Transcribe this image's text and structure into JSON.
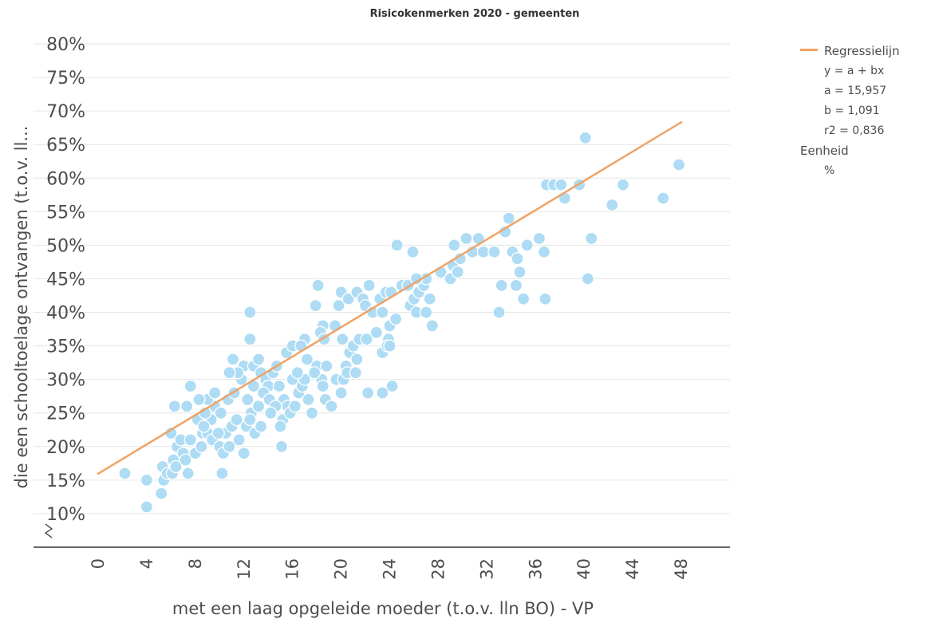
{
  "legend": {
    "series_label": "Regressielijn",
    "formula": "y = a + bx",
    "a": "a = 15,957",
    "b": "b = 1,091",
    "r2": "r2 = 0,836",
    "unit_label": "Eenheid",
    "unit_value": "%"
  },
  "chart_data": {
    "type": "scatter",
    "title": "Risicokenmerken 2020 - gemeenten",
    "xlabel": "met een laag opgeleide moeder (t.o.v. lln BO) - VP",
    "ylabel": "die een schooltoelage ontvangen (t.o.v. ll...",
    "x_ticks": [
      "0",
      "4",
      "8",
      "12",
      "16",
      "20",
      "24",
      "28",
      "32",
      "36",
      "40",
      "44",
      "48"
    ],
    "y_ticks": [
      "10%",
      "15%",
      "20%",
      "25%",
      "30%",
      "35%",
      "40%",
      "45%",
      "50%",
      "55%",
      "60%",
      "65%",
      "70%",
      "75%",
      "80%"
    ],
    "xlim": [
      0,
      52
    ],
    "ylim": [
      5,
      80
    ],
    "axis_break": true,
    "grid": "horizontal",
    "colors": {
      "points": "#aedcf4",
      "point_edge": "#ffffff",
      "regression": "#f0a366",
      "grid": "#e6e6e6",
      "axis": "#333333"
    },
    "regression": {
      "a": 15.957,
      "b": 1.091,
      "x_range": [
        0,
        48
      ]
    },
    "points": [
      [
        2.2,
        16
      ],
      [
        4,
        15
      ],
      [
        4,
        11
      ],
      [
        5.2,
        13
      ],
      [
        5.4,
        15
      ],
      [
        5.3,
        17
      ],
      [
        5.7,
        16
      ],
      [
        6.1,
        16
      ],
      [
        6.2,
        18
      ],
      [
        6.4,
        17
      ],
      [
        6,
        22
      ],
      [
        6.5,
        20
      ],
      [
        7,
        19
      ],
      [
        7.2,
        18
      ],
      [
        7.4,
        16
      ],
      [
        6.8,
        21
      ],
      [
        6.3,
        26
      ],
      [
        7.3,
        26
      ],
      [
        7.6,
        29
      ],
      [
        8,
        19
      ],
      [
        8.5,
        20
      ],
      [
        8.6,
        22
      ],
      [
        9,
        22
      ],
      [
        9.3,
        24
      ],
      [
        9.6,
        26
      ],
      [
        9,
        27
      ],
      [
        9.4,
        21
      ],
      [
        10,
        20
      ],
      [
        10.3,
        19
      ],
      [
        10.8,
        20
      ],
      [
        10.5,
        22
      ],
      [
        11,
        23
      ],
      [
        11.4,
        24
      ],
      [
        11.6,
        21
      ],
      [
        12,
        19
      ],
      [
        12.2,
        23
      ],
      [
        12.6,
        25
      ],
      [
        12.3,
        27
      ],
      [
        12.8,
        29
      ],
      [
        12.5,
        24
      ],
      [
        8.2,
        24
      ],
      [
        8.8,
        25
      ],
      [
        10.1,
        25
      ],
      [
        10.7,
        27
      ],
      [
        11.2,
        28
      ],
      [
        11.8,
        30
      ],
      [
        12,
        32
      ],
      [
        11.5,
        31
      ],
      [
        10.8,
        31
      ],
      [
        11.1,
        33
      ],
      [
        12.8,
        32
      ],
      [
        13.2,
        33
      ],
      [
        13.4,
        31
      ],
      [
        13.8,
        30
      ],
      [
        14,
        29
      ],
      [
        14.4,
        31
      ],
      [
        14.7,
        32
      ],
      [
        15,
        29
      ],
      [
        15.3,
        27
      ],
      [
        15.6,
        26
      ],
      [
        15.2,
        24
      ],
      [
        15.8,
        25
      ],
      [
        16.2,
        26
      ],
      [
        16.5,
        28
      ],
      [
        16.8,
        29
      ],
      [
        17,
        30
      ],
      [
        17.3,
        27
      ],
      [
        17.6,
        25
      ],
      [
        13.2,
        26
      ],
      [
        13.6,
        28
      ],
      [
        14.1,
        27
      ],
      [
        14.6,
        26
      ],
      [
        15,
        23
      ],
      [
        15.1,
        20
      ],
      [
        14.2,
        25
      ],
      [
        12.9,
        22
      ],
      [
        13.4,
        23
      ],
      [
        12.5,
        36
      ],
      [
        12.5,
        40
      ],
      [
        15.5,
        34
      ],
      [
        16,
        35
      ],
      [
        17.2,
        33
      ],
      [
        17,
        36
      ],
      [
        16.7,
        35
      ],
      [
        18,
        32
      ],
      [
        18.4,
        30
      ],
      [
        18.8,
        32
      ],
      [
        18.5,
        29
      ],
      [
        18.7,
        27
      ],
      [
        19.2,
        26
      ],
      [
        19.6,
        30
      ],
      [
        20,
        28
      ],
      [
        20.2,
        30
      ],
      [
        20.4,
        32
      ],
      [
        20.7,
        34
      ],
      [
        21,
        35
      ],
      [
        21.3,
        33
      ],
      [
        21.5,
        36
      ],
      [
        22.1,
        36
      ],
      [
        20.1,
        36
      ],
      [
        19.8,
        41
      ],
      [
        18.5,
        38
      ],
      [
        18.3,
        37
      ],
      [
        18.6,
        36
      ],
      [
        17.9,
        41
      ],
      [
        18.1,
        44
      ],
      [
        20,
        43
      ],
      [
        20.6,
        42
      ],
      [
        21.3,
        43
      ],
      [
        21.8,
        42
      ],
      [
        22.3,
        44
      ],
      [
        22,
        41
      ],
      [
        22.6,
        40
      ],
      [
        22.9,
        37
      ],
      [
        23.4,
        40
      ],
      [
        23.9,
        36
      ],
      [
        23.4,
        34
      ],
      [
        23.8,
        35
      ],
      [
        24,
        35
      ],
      [
        24.2,
        29
      ],
      [
        22.2,
        28
      ],
      [
        23.4,
        28
      ],
      [
        23.2,
        42
      ],
      [
        23.7,
        43
      ],
      [
        24.1,
        43
      ],
      [
        24,
        38
      ],
      [
        24.5,
        39
      ],
      [
        25,
        44
      ],
      [
        24.6,
        50
      ],
      [
        25.7,
        41
      ],
      [
        26,
        42
      ],
      [
        26.2,
        40
      ],
      [
        26.4,
        43
      ],
      [
        26.8,
        44
      ],
      [
        27,
        40
      ],
      [
        27.5,
        38
      ],
      [
        27.3,
        42
      ],
      [
        27,
        45
      ],
      [
        25.9,
        49
      ],
      [
        28.2,
        46
      ],
      [
        29,
        45
      ],
      [
        29.2,
        47
      ],
      [
        29.3,
        50
      ],
      [
        29.6,
        46
      ],
      [
        29.8,
        48
      ],
      [
        30.3,
        51
      ],
      [
        30.8,
        49
      ],
      [
        31.3,
        51
      ],
      [
        31.7,
        49
      ],
      [
        32.6,
        49
      ],
      [
        33.2,
        44
      ],
      [
        33.5,
        52
      ],
      [
        33.8,
        54
      ],
      [
        34.1,
        49
      ],
      [
        34.5,
        48
      ],
      [
        34.7,
        46
      ],
      [
        35.3,
        50
      ],
      [
        35,
        42
      ],
      [
        36.3,
        51
      ],
      [
        36.7,
        49
      ],
      [
        36.9,
        59
      ],
      [
        37.5,
        59
      ],
      [
        38.1,
        59
      ],
      [
        38.4,
        57
      ],
      [
        39.6,
        59
      ],
      [
        40.1,
        66
      ],
      [
        40.6,
        51
      ],
      [
        40.3,
        45
      ],
      [
        42.3,
        56
      ],
      [
        43.2,
        59
      ],
      [
        46.5,
        57
      ],
      [
        47.8,
        62
      ],
      [
        36.8,
        42
      ],
      [
        34.4,
        44
      ],
      [
        33,
        40
      ],
      [
        25.5,
        44
      ],
      [
        26.2,
        45
      ],
      [
        20.5,
        31
      ],
      [
        21.2,
        31
      ],
      [
        19.5,
        38
      ],
      [
        10.2,
        16
      ],
      [
        9.6,
        28
      ],
      [
        8.3,
        27
      ],
      [
        7.6,
        21
      ],
      [
        8.7,
        23
      ],
      [
        9.9,
        22
      ],
      [
        14.9,
        29
      ],
      [
        16,
        30
      ],
      [
        16.4,
        31
      ],
      [
        17.8,
        31
      ]
    ]
  }
}
